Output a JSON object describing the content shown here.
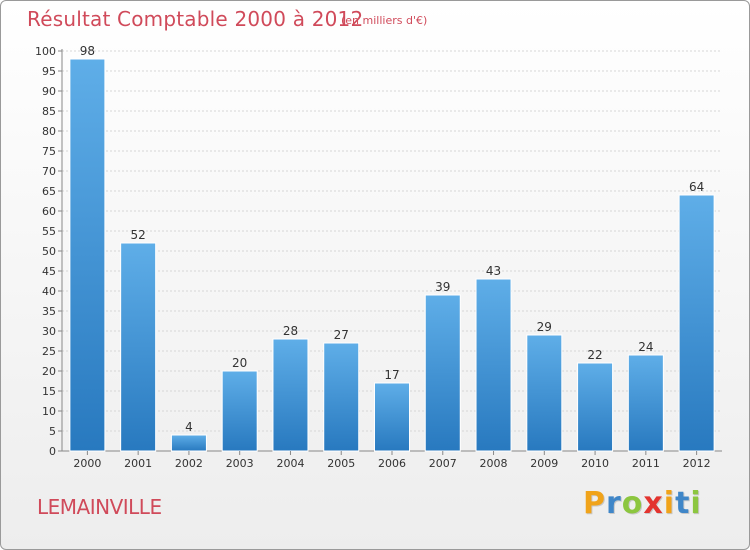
{
  "chart_data": {
    "type": "bar",
    "title": "Résultat Comptable 2000 à 2012",
    "subtitle": "(en milliers d'€)",
    "categories": [
      "2000",
      "2001",
      "2002",
      "2003",
      "2004",
      "2005",
      "2006",
      "2007",
      "2008",
      "2009",
      "2010",
      "2011",
      "2012"
    ],
    "values": [
      98,
      52,
      4,
      20,
      28,
      27,
      17,
      39,
      43,
      29,
      22,
      24,
      64
    ],
    "ylim": [
      0,
      100
    ],
    "yticks": [
      0,
      5,
      10,
      15,
      20,
      25,
      30,
      35,
      40,
      45,
      50,
      55,
      60,
      65,
      70,
      75,
      80,
      85,
      90,
      95,
      100
    ],
    "grid": true,
    "colors": {
      "bar_light": "#5faee8",
      "bar_dark": "#2879bf",
      "title": "#d04a5a"
    }
  },
  "footer": {
    "place_name": "LEMAINVILLE",
    "logo": {
      "letters": [
        "P",
        "r",
        "o",
        "x",
        "i",
        "t",
        "i"
      ],
      "colors": [
        "#f0a31a",
        "#3f86c8",
        "#8cc63f",
        "#e3342f",
        "#f0a31a",
        "#3f86c8",
        "#8cc63f"
      ]
    }
  }
}
